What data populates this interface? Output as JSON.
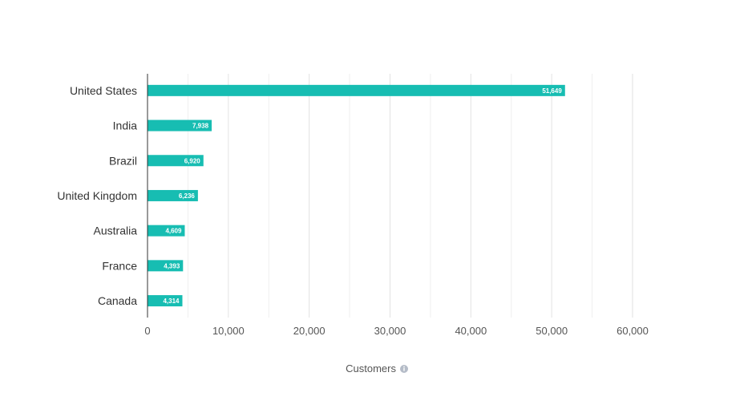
{
  "chart_data": {
    "type": "bar",
    "orientation": "horizontal",
    "categories": [
      "United States",
      "India",
      "Brazil",
      "United Kingdom",
      "Australia",
      "France",
      "Canada"
    ],
    "values": [
      51649,
      7938,
      6920,
      6236,
      4609,
      4393,
      4314
    ],
    "value_labels": [
      "51,649",
      "7,938",
      "6,920",
      "6,236",
      "4,609",
      "4,393",
      "4,314"
    ],
    "xlabel": "Customers",
    "xlim": [
      0,
      60000
    ],
    "ticks": [
      0,
      10000,
      20000,
      30000,
      40000,
      50000,
      60000
    ],
    "tick_labels": [
      "0",
      "10,000",
      "20,000",
      "30,000",
      "40,000",
      "50,000",
      "60,000"
    ],
    "grid": true,
    "legend": "none",
    "colors": {
      "bar": "#17bdb2",
      "grid": "#e2e2e2",
      "axis": "#333333",
      "label_text": "#ffffff"
    }
  },
  "info_icon": "info-circle-icon"
}
